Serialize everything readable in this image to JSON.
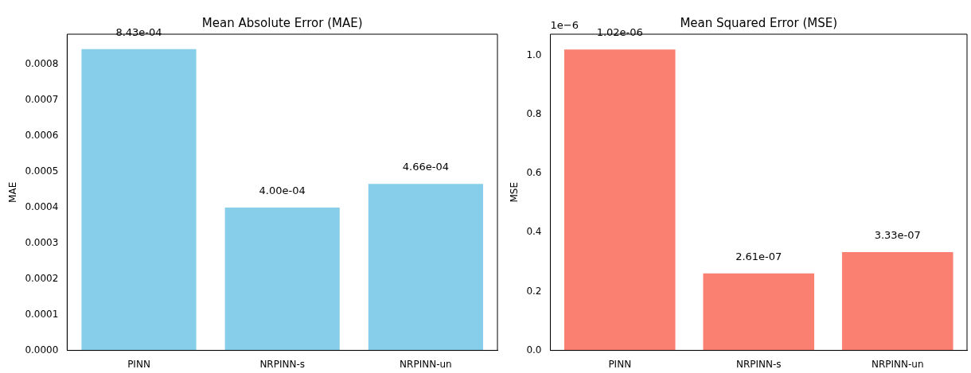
{
  "chart_data": [
    {
      "type": "bar",
      "title": "Mean Absolute Error (MAE)",
      "ylabel": "MAE",
      "categories": [
        "PINN",
        "NRPINN-s",
        "NRPINN-un"
      ],
      "values": [
        0.000843,
        0.0004,
        0.000466
      ],
      "color": "#87ceeb",
      "value_labels": [
        "8.43e-04",
        "4.00e-04",
        "4.66e-04"
      ],
      "ylim": [
        0,
        0.000885
      ],
      "yticks": [
        {
          "value": 0,
          "label": "0.0000"
        },
        {
          "value": 0.0001,
          "label": "0.0001"
        },
        {
          "value": 0.0002,
          "label": "0.0002"
        },
        {
          "value": 0.0003,
          "label": "0.0003"
        },
        {
          "value": 0.0004,
          "label": "0.0004"
        },
        {
          "value": 0.0005,
          "label": "0.0005"
        },
        {
          "value": 0.0006,
          "label": "0.0006"
        },
        {
          "value": 0.0007,
          "label": "0.0007"
        },
        {
          "value": 0.0008,
          "label": "0.0008"
        }
      ],
      "grid": false,
      "legend": false
    },
    {
      "type": "bar",
      "title": "Mean Squared Error (MSE)",
      "ylabel": "MSE",
      "categories": [
        "PINN",
        "NRPINN-s",
        "NRPINN-un"
      ],
      "values": [
        1.02,
        0.261,
        0.333
      ],
      "color": "#fa8072",
      "ylim": [
        0,
        1.072
      ],
      "yticks": [
        {
          "value": 0,
          "label": "0.0"
        },
        0.2,
        0.4,
        0.6,
        0.8,
        {
          "value": 1,
          "label": "1.0"
        }
      ],
      "annotations": [
        "1e−6",
        {
          "text": "1.02e-06",
          "x": "PINN",
          "y": 1.02
        },
        {
          "text": "2.61e-07",
          "x": "NRPINN-s",
          "y": 0.261
        },
        {
          "text": "3.33e-07",
          "x": "NRPINN-un",
          "y": 0.333
        }
      ],
      "grid": false,
      "legend": false
    }
  ]
}
